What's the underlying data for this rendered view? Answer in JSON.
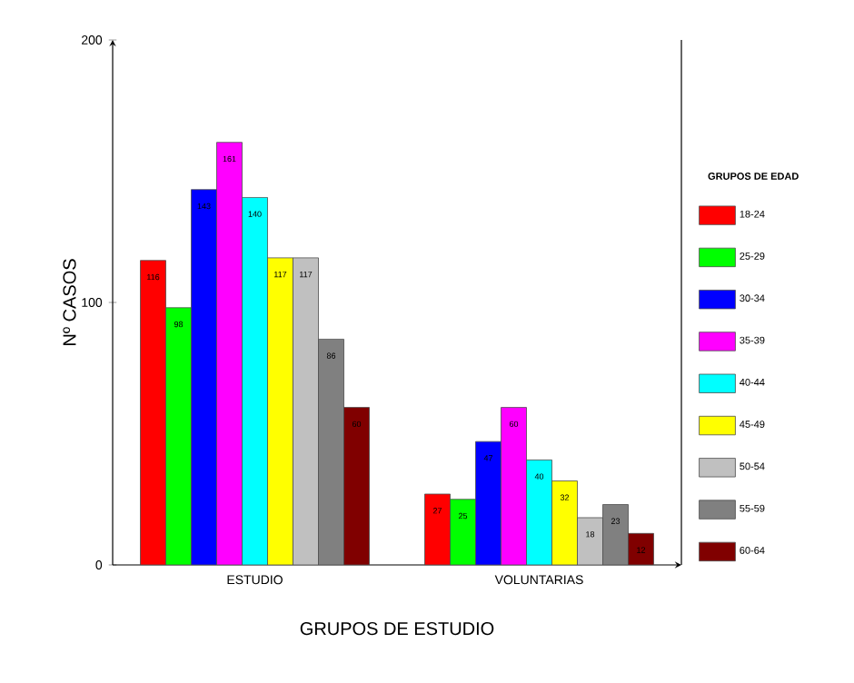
{
  "chart_data": {
    "type": "bar",
    "xlabel": "GRUPOS DE ESTUDIO",
    "ylabel": "Nº CASOS",
    "legend_title": "GRUPOS DE EDAD",
    "categories": [
      "ESTUDIO",
      "VOLUNTARIAS"
    ],
    "series": [
      {
        "name": "18-24",
        "color": "#ff0000",
        "values": [
          116,
          27
        ]
      },
      {
        "name": "25-29",
        "color": "#00ff00",
        "values": [
          98,
          25
        ]
      },
      {
        "name": "30-34",
        "color": "#0000ff",
        "values": [
          143,
          47
        ]
      },
      {
        "name": "35-39",
        "color": "#ff00ff",
        "values": [
          161,
          60
        ]
      },
      {
        "name": "40-44",
        "color": "#00ffff",
        "values": [
          140,
          40
        ]
      },
      {
        "name": "45-49",
        "color": "#ffff00",
        "values": [
          117,
          32
        ]
      },
      {
        "name": "50-54",
        "color": "#c0c0c0",
        "values": [
          117,
          18
        ]
      },
      {
        "name": "55-59",
        "color": "#808080",
        "values": [
          86,
          23
        ]
      },
      {
        "name": "60-64",
        "color": "#800000",
        "values": [
          60,
          12
        ]
      }
    ],
    "ylim": [
      0,
      200
    ],
    "yticks": [
      0,
      100,
      200
    ],
    "data_labels": true,
    "legend": "right"
  }
}
